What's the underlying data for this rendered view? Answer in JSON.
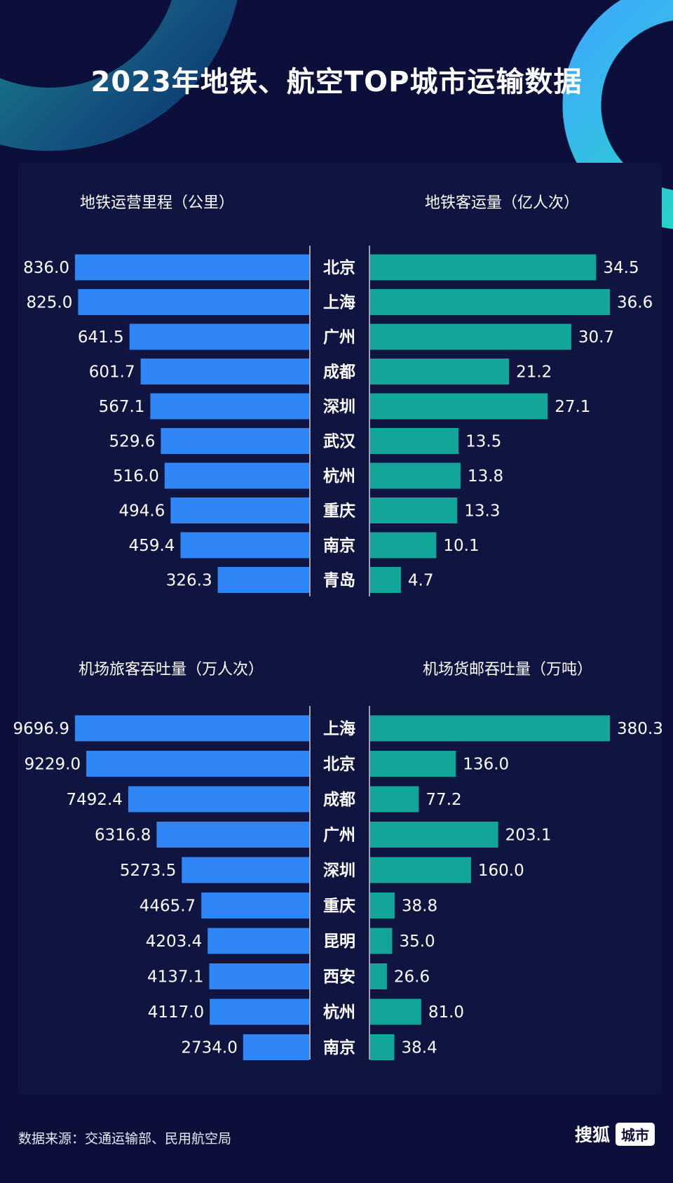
{
  "title": "2023年地铁、航空TOP城市运输数据",
  "source": "数据来源：交通运输部、民用航空局",
  "brand": {
    "name": "搜狐",
    "tag": "城市"
  },
  "colors": {
    "background": "#0b0f3a",
    "panel": "#0f1440",
    "left_bar": "#2f86f6",
    "right_bar": "#12a59a",
    "divider": "#ffffff"
  },
  "chart_data": [
    {
      "type": "bar",
      "orientation": "horizontal",
      "title": "地铁运营里程（公里）",
      "categories": [
        "北京",
        "上海",
        "广州",
        "成都",
        "深圳",
        "武汉",
        "杭州",
        "重庆",
        "南京",
        "青岛"
      ],
      "values": [
        836.0,
        825.0,
        641.5,
        601.7,
        567.1,
        529.6,
        516.0,
        494.6,
        459.4,
        326.3
      ],
      "labels": [
        "836.0",
        "825.0",
        "641.5",
        "601.7",
        "567.1",
        "529.6",
        "516.0",
        "494.6",
        "459.4",
        "326.3"
      ],
      "direction": "left",
      "max": 836.0
    },
    {
      "type": "bar",
      "orientation": "horizontal",
      "title": "地铁客运量（亿人次）",
      "categories": [
        "北京",
        "上海",
        "广州",
        "成都",
        "深圳",
        "武汉",
        "杭州",
        "重庆",
        "南京",
        "青岛"
      ],
      "values": [
        34.5,
        36.6,
        30.7,
        21.2,
        27.1,
        13.5,
        13.8,
        13.3,
        10.1,
        4.7
      ],
      "labels": [
        "34.5",
        "36.6",
        "30.7",
        "21.2",
        "27.1",
        "13.5",
        "13.8",
        "13.3",
        "10.1",
        "4.7"
      ],
      "direction": "right",
      "max": 36.6
    },
    {
      "type": "bar",
      "orientation": "horizontal",
      "title": "机场旅客吞吐量（万人次）",
      "categories": [
        "上海",
        "北京",
        "成都",
        "广州",
        "深圳",
        "重庆",
        "昆明",
        "西安",
        "杭州",
        "南京"
      ],
      "values": [
        9696.9,
        9229.0,
        7492.4,
        6316.8,
        5273.5,
        4465.7,
        4203.4,
        4137.1,
        4117.0,
        2734.0
      ],
      "labels": [
        "9696.9",
        "9229.0",
        "7492.4",
        "6316.8",
        "5273.5",
        "4465.7",
        "4203.4",
        "4137.1",
        "4117.0",
        "2734.0"
      ],
      "direction": "left",
      "max": 9696.9
    },
    {
      "type": "bar",
      "orientation": "horizontal",
      "title": "机场货邮吞吐量（万吨）",
      "categories": [
        "上海",
        "北京",
        "成都",
        "广州",
        "深圳",
        "重庆",
        "昆明",
        "西安",
        "杭州",
        "南京"
      ],
      "values": [
        380.3,
        136.0,
        77.2,
        203.1,
        160.0,
        38.8,
        35.0,
        26.6,
        81.0,
        38.4
      ],
      "labels": [
        "380.3",
        "136.0",
        "77.2",
        "203.1",
        "160.0",
        "38.8",
        "35.0",
        "26.6",
        "81.0",
        "38.4"
      ],
      "direction": "right",
      "max": 380.3
    }
  ]
}
